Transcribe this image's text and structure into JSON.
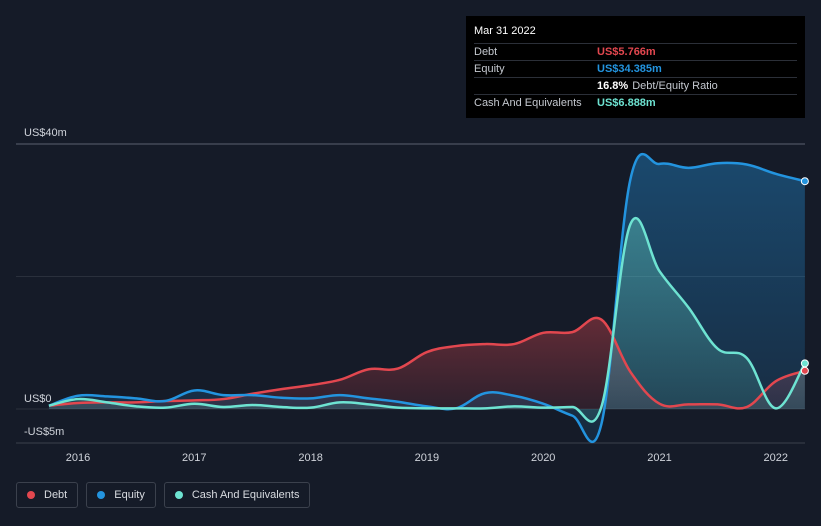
{
  "chart_data": {
    "type": "area",
    "y_unit_labels": {
      "top": "US$40m",
      "zero": "US$0",
      "bottom": "-US$5m"
    },
    "ylim": [
      -5,
      40
    ],
    "xlim": [
      2015.7,
      2022.25
    ],
    "x_ticks": [
      {
        "value": 2016,
        "label": "2016"
      },
      {
        "value": 2017,
        "label": "2017"
      },
      {
        "value": 2018,
        "label": "2018"
      },
      {
        "value": 2019,
        "label": "2019"
      },
      {
        "value": 2020,
        "label": "2020"
      },
      {
        "value": 2021,
        "label": "2021"
      },
      {
        "value": 2022,
        "label": "2022"
      }
    ],
    "grid": true,
    "series": [
      {
        "name": "Debt",
        "color": "#e2474f",
        "points": [
          [
            2015.75,
            0.5
          ],
          [
            2016.0,
            0.9
          ],
          [
            2016.25,
            1.0
          ],
          [
            2016.5,
            1.0
          ],
          [
            2016.75,
            1.2
          ],
          [
            2017.0,
            1.3
          ],
          [
            2017.25,
            1.5
          ],
          [
            2017.5,
            2.3
          ],
          [
            2017.75,
            3.0
          ],
          [
            2018.0,
            3.6
          ],
          [
            2018.25,
            4.4
          ],
          [
            2018.5,
            6.0
          ],
          [
            2018.75,
            6.1
          ],
          [
            2019.0,
            8.6
          ],
          [
            2019.25,
            9.5
          ],
          [
            2019.5,
            9.8
          ],
          [
            2019.75,
            9.8
          ],
          [
            2020.0,
            11.5
          ],
          [
            2020.25,
            11.6
          ],
          [
            2020.5,
            13.5
          ],
          [
            2020.75,
            5.6
          ],
          [
            2021.0,
            0.8
          ],
          [
            2021.25,
            0.7
          ],
          [
            2021.5,
            0.7
          ],
          [
            2021.75,
            0.3
          ],
          [
            2022.0,
            4.2
          ],
          [
            2022.25,
            5.766
          ]
        ]
      },
      {
        "name": "Equity",
        "color": "#2394df",
        "points": [
          [
            2015.75,
            0.5
          ],
          [
            2016.0,
            2.0
          ],
          [
            2016.25,
            1.9
          ],
          [
            2016.5,
            1.6
          ],
          [
            2016.75,
            1.2
          ],
          [
            2017.0,
            2.8
          ],
          [
            2017.25,
            2.1
          ],
          [
            2017.5,
            2.1
          ],
          [
            2017.75,
            1.7
          ],
          [
            2018.0,
            1.6
          ],
          [
            2018.25,
            2.1
          ],
          [
            2018.5,
            1.6
          ],
          [
            2018.75,
            1.1
          ],
          [
            2019.0,
            0.4
          ],
          [
            2019.25,
            0.1
          ],
          [
            2019.5,
            2.4
          ],
          [
            2019.75,
            2.0
          ],
          [
            2020.0,
            0.8
          ],
          [
            2020.25,
            -1.0
          ],
          [
            2020.5,
            -2.3
          ],
          [
            2020.75,
            34.7
          ],
          [
            2021.0,
            37.0
          ],
          [
            2021.25,
            36.4
          ],
          [
            2021.5,
            37.1
          ],
          [
            2021.75,
            36.9
          ],
          [
            2022.0,
            35.5
          ],
          [
            2022.25,
            34.385
          ]
        ]
      },
      {
        "name": "Cash And Equivalents",
        "color": "#6ee3d2",
        "points": [
          [
            2015.75,
            0.5
          ],
          [
            2016.0,
            1.5
          ],
          [
            2016.25,
            1.0
          ],
          [
            2016.5,
            0.4
          ],
          [
            2016.75,
            0.2
          ],
          [
            2017.0,
            0.8
          ],
          [
            2017.25,
            0.3
          ],
          [
            2017.5,
            0.6
          ],
          [
            2017.75,
            0.3
          ],
          [
            2018.0,
            0.2
          ],
          [
            2018.25,
            1.0
          ],
          [
            2018.5,
            0.7
          ],
          [
            2018.75,
            0.2
          ],
          [
            2019.0,
            0.1
          ],
          [
            2019.25,
            0.1
          ],
          [
            2019.5,
            0.1
          ],
          [
            2019.75,
            0.4
          ],
          [
            2020.0,
            0.2
          ],
          [
            2020.25,
            0.3
          ],
          [
            2020.5,
            0.3
          ],
          [
            2020.75,
            27.9
          ],
          [
            2021.0,
            20.8
          ],
          [
            2021.25,
            15.3
          ],
          [
            2021.5,
            9.1
          ],
          [
            2021.75,
            7.7
          ],
          [
            2022.0,
            0.1
          ],
          [
            2022.25,
            6.888
          ]
        ]
      }
    ]
  },
  "tooltip": {
    "date": "Mar 31 2022",
    "debt_label": "Debt",
    "debt_value": "US$5.766m",
    "equity_label": "Equity",
    "equity_value": "US$34.385m",
    "ratio_value": "16.8%",
    "ratio_label": "Debt/Equity Ratio",
    "cash_label": "Cash And Equivalents",
    "cash_value": "US$6.888m"
  },
  "legend": [
    {
      "label": "Debt",
      "color": "#e2474f"
    },
    {
      "label": "Equity",
      "color": "#2394df"
    },
    {
      "label": "Cash And Equivalents",
      "color": "#6ee3d2"
    }
  ]
}
